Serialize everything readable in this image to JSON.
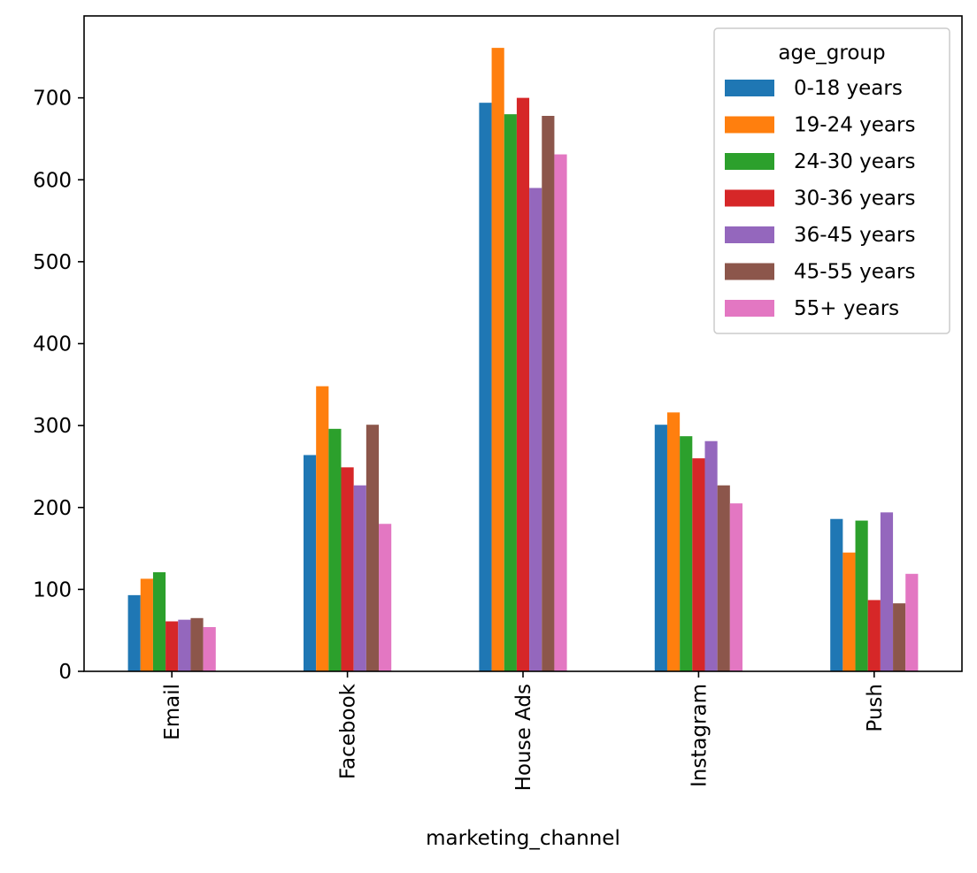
{
  "chart_data": {
    "type": "bar",
    "xlabel": "marketing_channel",
    "ylabel": "",
    "ylim": [
      0,
      800
    ],
    "yticks": [
      0,
      100,
      200,
      300,
      400,
      500,
      600,
      700
    ],
    "grid": false,
    "categories": [
      "Email",
      "Facebook",
      "House Ads",
      "Instagram",
      "Push"
    ],
    "legend": {
      "title": "age_group",
      "placement": "upper right"
    },
    "series": [
      {
        "name": "0-18 years",
        "color": "#1f77b4",
        "values": [
          93,
          264,
          694,
          301,
          186
        ]
      },
      {
        "name": "19-24 years",
        "color": "#ff7f0e",
        "values": [
          113,
          348,
          761,
          316,
          145
        ]
      },
      {
        "name": "24-30 years",
        "color": "#2ca02c",
        "values": [
          121,
          296,
          680,
          287,
          184
        ]
      },
      {
        "name": "30-36 years",
        "color": "#d62728",
        "values": [
          61,
          249,
          700,
          260,
          87
        ]
      },
      {
        "name": "36-45 years",
        "color": "#9467bd",
        "values": [
          63,
          227,
          590,
          281,
          194
        ]
      },
      {
        "name": "45-55 years",
        "color": "#8c564b",
        "values": [
          65,
          301,
          678,
          227,
          83
        ]
      },
      {
        "name": "55+ years",
        "color": "#e377c2",
        "values": [
          54,
          180,
          631,
          205,
          119
        ]
      }
    ]
  }
}
